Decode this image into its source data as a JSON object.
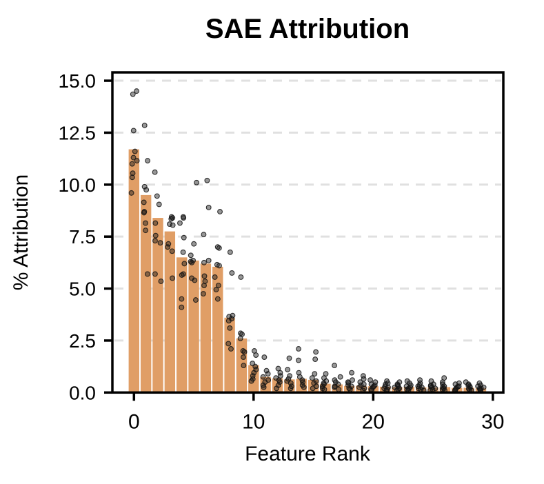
{
  "chart_data": {
    "type": "bar",
    "title": "SAE Attribution",
    "xlabel": "Feature Rank",
    "ylabel": "% Attribution",
    "categories": [
      0,
      1,
      2,
      3,
      4,
      5,
      6,
      7,
      8,
      9,
      10,
      11,
      12,
      13,
      14,
      15,
      16,
      17,
      18,
      19,
      20,
      21,
      22,
      23,
      24,
      25,
      26,
      27,
      28,
      29
    ],
    "bar_values": [
      11.7,
      9.5,
      8.4,
      7.75,
      6.5,
      6.35,
      6.2,
      6.05,
      3.6,
      2.6,
      1.32,
      0.75,
      0.68,
      0.63,
      0.66,
      0.61,
      0.42,
      0.39,
      0.32,
      0.33,
      0.3,
      0.28,
      0.26,
      0.27,
      0.25,
      0.24,
      0.26,
      0.22,
      0.23,
      0.2
    ],
    "scatter_points": [
      [
        14.5,
        14.35,
        12.6,
        11.6,
        11.3,
        11.15,
        11.0,
        10.55,
        10.35,
        9.6
      ],
      [
        12.85,
        11.15,
        9.9,
        9.75,
        9.15,
        8.7,
        8.65,
        8.15,
        7.8,
        5.7
      ],
      [
        10.6,
        9.45,
        9.05,
        8.15,
        7.55,
        7.3,
        7.2,
        5.7,
        5.35
      ],
      [
        8.45,
        8.4,
        8.35,
        8.1,
        8.05,
        7.15,
        7.0,
        6.8,
        5.5
      ],
      [
        8.45,
        8.4,
        8.15,
        7.45,
        6.75,
        6.2,
        5.7,
        5.65,
        4.5,
        4.1
      ],
      [
        10.1,
        7.15,
        6.6,
        6.35,
        6.3,
        6.25,
        5.5,
        5.4,
        4.45
      ],
      [
        10.2,
        8.9,
        7.6,
        6.35,
        6.25,
        5.6,
        5.35,
        5.15,
        4.75
      ],
      [
        8.7,
        7.0,
        6.95,
        6.15,
        6.1,
        5.55,
        5.15,
        4.95,
        4.5
      ],
      [
        6.75,
        5.75,
        3.7,
        3.65,
        3.55,
        3.45,
        3.1,
        2.35,
        2.1
      ],
      [
        5.55,
        2.85,
        2.8,
        2.6,
        2.0,
        1.95,
        1.7,
        1.3
      ],
      [
        2.0,
        1.8,
        1.4,
        1.25,
        1.1,
        0.95,
        0.8,
        0.65,
        0.55
      ],
      [
        1.7,
        1.05,
        0.9,
        0.75,
        0.6,
        0.5,
        0.35,
        0.25
      ],
      [
        1.15,
        0.95,
        0.8,
        0.7,
        0.6,
        0.5,
        0.35,
        0.2
      ],
      [
        1.65,
        1.1,
        0.8,
        0.65,
        0.55,
        0.45,
        0.3,
        0.2
      ],
      [
        2.1,
        1.55,
        0.95,
        0.75,
        0.6,
        0.5,
        0.35,
        0.25
      ],
      [
        1.95,
        1.6,
        0.9,
        0.7,
        0.55,
        0.45,
        0.3,
        0.2
      ],
      [
        0.9,
        0.7,
        0.55,
        0.45,
        0.4,
        0.3,
        0.2,
        0.15
      ],
      [
        1.3,
        0.75,
        0.6,
        0.5,
        0.4,
        0.3,
        0.25,
        0.15
      ],
      [
        0.95,
        0.6,
        0.5,
        0.45,
        0.35,
        0.3,
        0.2,
        0.15
      ],
      [
        0.8,
        0.65,
        0.5,
        0.4,
        0.35,
        0.25,
        0.2,
        0.1
      ],
      [
        0.6,
        0.5,
        0.4,
        0.35,
        0.3,
        0.25,
        0.15,
        0.1
      ],
      [
        0.55,
        0.45,
        0.4,
        0.3,
        0.25,
        0.2,
        0.15,
        0.1
      ],
      [
        0.5,
        0.4,
        0.35,
        0.3,
        0.25,
        0.2,
        0.15,
        0.1
      ],
      [
        0.55,
        0.45,
        0.35,
        0.3,
        0.25,
        0.2,
        0.15,
        0.1
      ],
      [
        0.6,
        0.45,
        0.35,
        0.3,
        0.25,
        0.2,
        0.15,
        0.1
      ],
      [
        0.55,
        0.4,
        0.35,
        0.3,
        0.25,
        0.2,
        0.15,
        0.1
      ],
      [
        0.7,
        0.5,
        0.4,
        0.3,
        0.25,
        0.2,
        0.15,
        0.1
      ],
      [
        0.45,
        0.4,
        0.3,
        0.28,
        0.22,
        0.18,
        0.12,
        0.1
      ],
      [
        0.5,
        0.4,
        0.35,
        0.3,
        0.25,
        0.18,
        0.14,
        0.1
      ],
      [
        0.45,
        0.35,
        0.3,
        0.25,
        0.2,
        0.18,
        0.12,
        0.1
      ]
    ],
    "yticks": [
      0.0,
      2.5,
      5.0,
      7.5,
      10.0,
      12.5,
      15.0
    ],
    "ytick_labels": [
      "0.0",
      "2.5",
      "5.0",
      "7.5",
      "10.0",
      "12.5",
      "15.0"
    ],
    "xticks": [
      0,
      10,
      20,
      30
    ],
    "xtick_labels": [
      "0",
      "10",
      "20",
      "30"
    ],
    "ylim": [
      0,
      15.4
    ],
    "xlim": [
      -1.8,
      30.9
    ],
    "grid": {
      "axis": "y",
      "style": "dashed",
      "color": "#E0E0E0"
    },
    "legend": null,
    "colors": {
      "bar": "#E09E66",
      "point_fill": "rgba(25,25,25,0.45)",
      "point_edge": "rgba(20,20,20,0.85)",
      "axis": "#000000",
      "background": "#FFFFFF"
    }
  }
}
